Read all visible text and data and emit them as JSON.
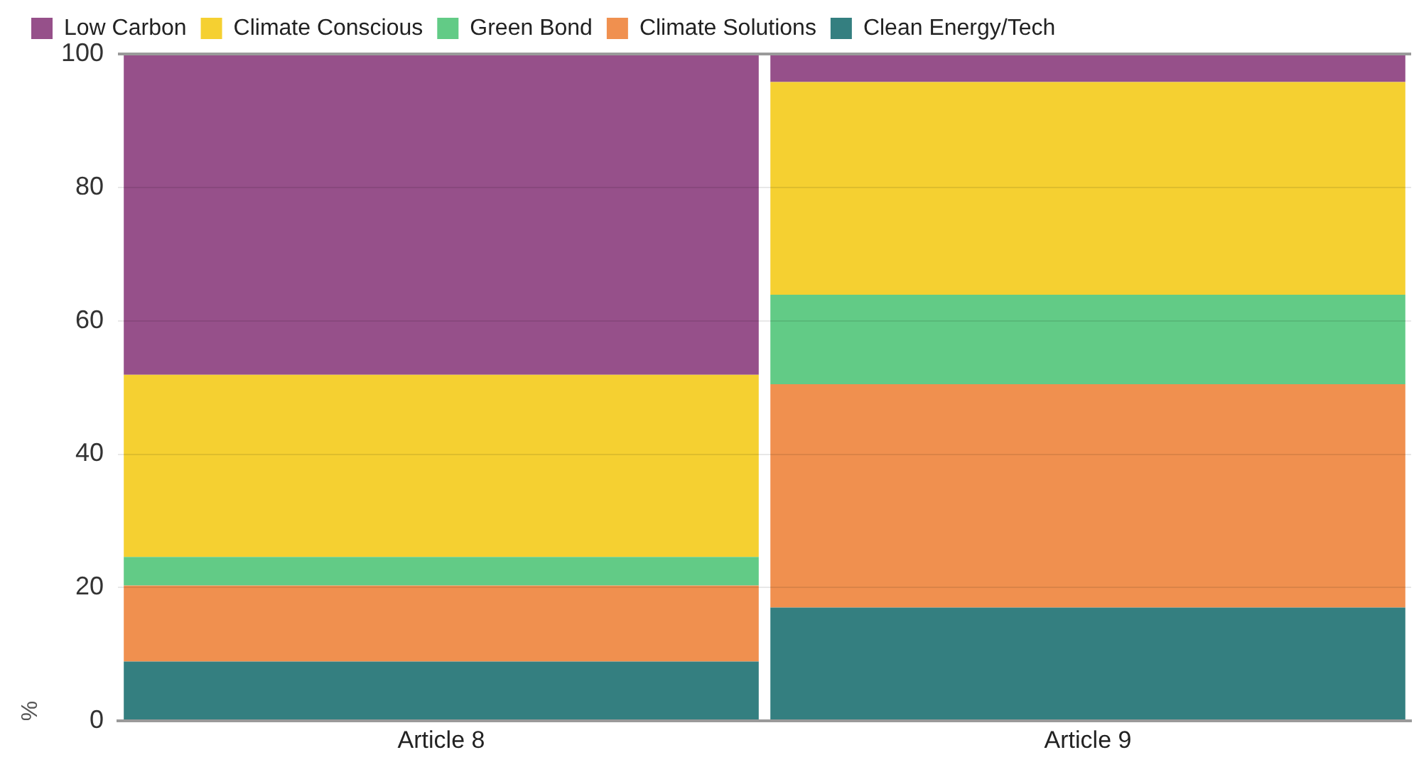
{
  "chart_data": {
    "type": "bar",
    "stacked": true,
    "ylabel": "%",
    "categories": [
      "Article 8",
      "Article 9"
    ],
    "series": [
      {
        "name": "Clean Energy/Tech",
        "color": "#347f80",
        "values": [
          8.9,
          17.0
        ]
      },
      {
        "name": "Climate Solutions",
        "color": "#f0904f",
        "values": [
          11.4,
          33.5
        ]
      },
      {
        "name": "Green Bond",
        "color": "#62cb86",
        "values": [
          4.3,
          13.4
        ]
      },
      {
        "name": "Climate Conscious",
        "color": "#f5d031",
        "values": [
          27.3,
          31.9
        ]
      },
      {
        "name": "Low Carbon",
        "color": "#96508a",
        "values": [
          48.1,
          4.2
        ]
      }
    ],
    "ylim": [
      0,
      100
    ],
    "yticks": [
      0,
      20,
      40,
      60,
      80,
      100
    ],
    "grid": "y",
    "legend": "top left"
  }
}
